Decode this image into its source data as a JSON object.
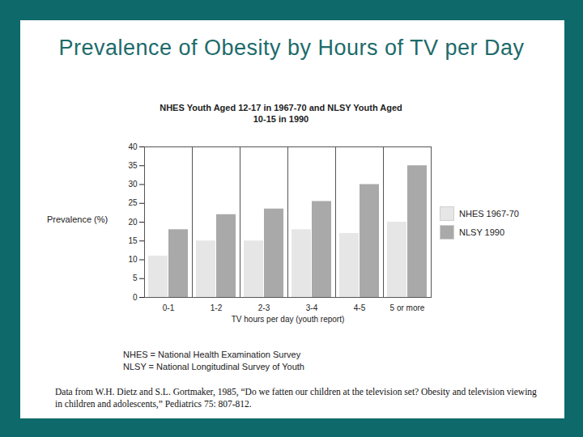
{
  "chart_data": {
    "type": "bar",
    "title": "Prevalence of Obesity by Hours of TV per Day",
    "subtitle": "NHES Youth Aged 12-17 in 1967-70 and NLSY Youth Aged 10-15 in 1990",
    "x_label": "TV hours per day (youth report)",
    "y_label": "Prevalence (%)",
    "categories": [
      "0-1",
      "1-2",
      "2-3",
      "3-4",
      "4-5",
      "5 or more"
    ],
    "series": [
      {
        "name": "NHES 1967-70",
        "color": "#e6e6e6",
        "values": [
          11,
          15,
          15,
          18,
          17,
          20
        ]
      },
      {
        "name": "NLSY 1990",
        "color": "#a9a9a9",
        "values": [
          18,
          22,
          23.5,
          25.5,
          30,
          35
        ]
      }
    ],
    "ylim": [
      0,
      40
    ],
    "yticks": [
      0,
      5,
      10,
      15,
      20,
      25,
      30,
      35,
      40
    ],
    "grid": false,
    "legend": "right",
    "notes": [
      "NHES = National Health Examination Survey",
      "NLSY = National Longitudinal Survey of Youth"
    ],
    "source": "Data from W.H. Dietz and S.L. Gortmaker, 1985, “Do we fatten our children at the television set? Obesity and television viewing in children and adolescents,” Pediatrics 75: 807-812."
  }
}
